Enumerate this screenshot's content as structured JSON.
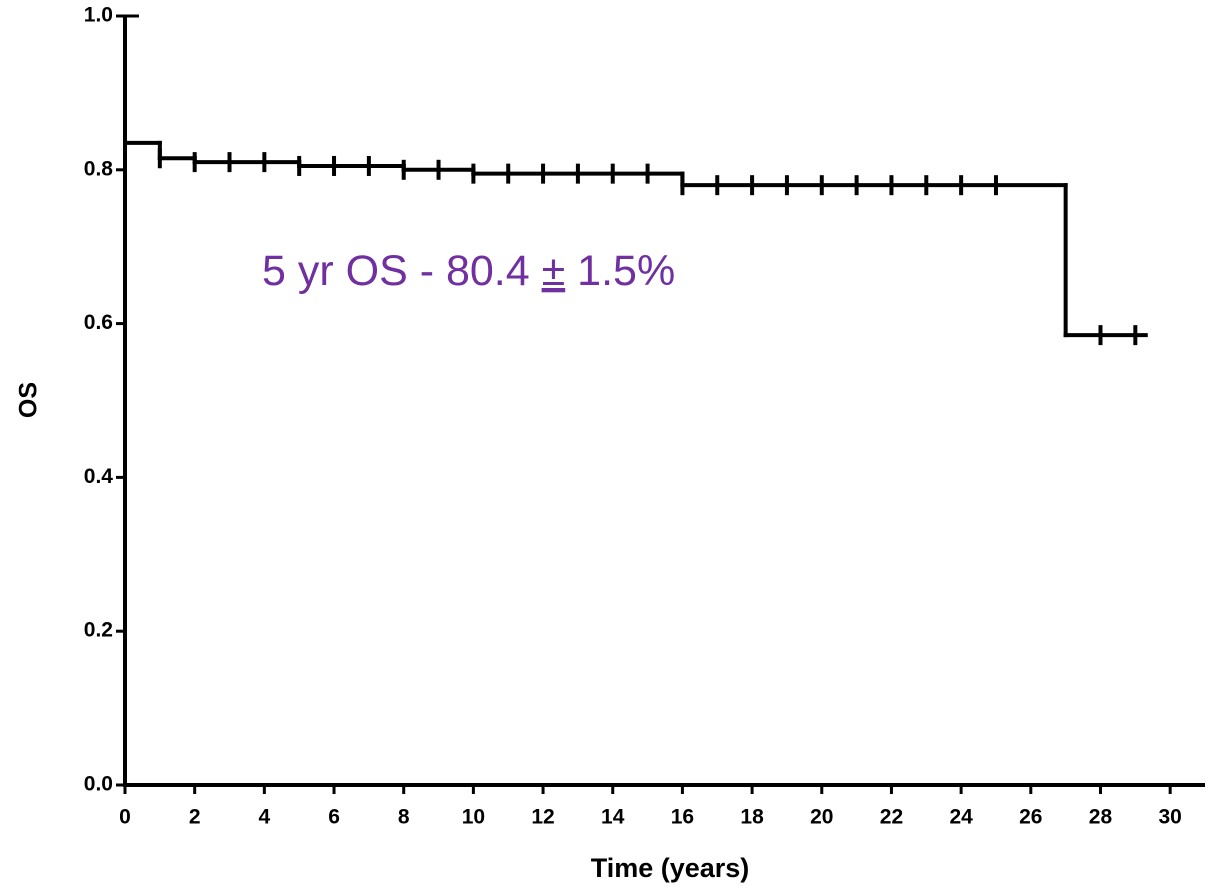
{
  "chart_data": {
    "type": "survival",
    "xlabel": "Time (years)",
    "ylabel": "OS",
    "annotation": [
      "5 yr OS - 80.4 ",
      "±",
      " 1.5%"
    ],
    "annotation_color": "#7030a0",
    "color": "#000000",
    "xlim": [
      0,
      31
    ],
    "ylim": [
      0,
      1
    ],
    "xticks": [
      0,
      2,
      4,
      6,
      8,
      10,
      12,
      14,
      16,
      18,
      20,
      22,
      24,
      26,
      28,
      30
    ],
    "yticks": [
      {
        "value": 0,
        "label": "0.0"
      },
      0.2,
      0.4,
      0.6,
      0.8,
      {
        "value": 1,
        "label": "1.0"
      }
    ],
    "steps": {
      "edges": [
        0,
        1,
        2,
        5,
        8,
        10,
        16,
        27,
        29.3
      ],
      "values": [
        0.835,
        0.815,
        0.81,
        0.805,
        0.8,
        0.795,
        0.78,
        0.585
      ]
    },
    "censored": {
      "x": [
        1,
        2,
        3,
        4,
        5,
        6,
        7,
        8,
        9,
        10,
        11,
        12,
        13,
        14,
        15,
        16,
        17,
        18,
        19,
        20,
        21,
        22,
        23,
        24,
        25,
        28,
        29
      ],
      "values": [
        0.815,
        0.81,
        0.81,
        0.81,
        0.805,
        0.805,
        0.805,
        0.8,
        0.8,
        0.795,
        0.795,
        0.795,
        0.795,
        0.795,
        0.795,
        0.78,
        0.78,
        0.78,
        0.78,
        0.78,
        0.78,
        0.78,
        0.78,
        0.78,
        0.78,
        0.585,
        0.585
      ]
    }
  }
}
